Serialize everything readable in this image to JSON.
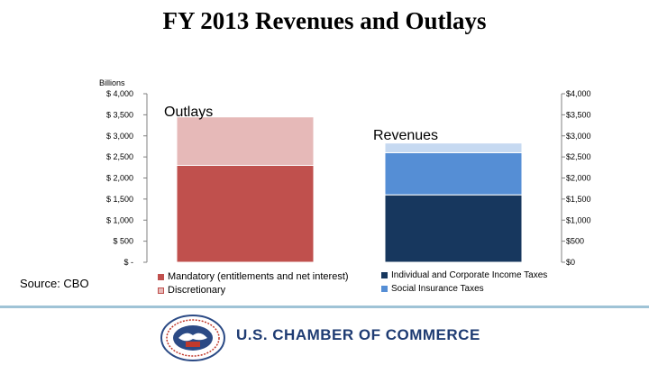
{
  "page": {
    "title": "FY 2013 Revenues and Outlays",
    "source": "Source: CBO",
    "organization": "U.S. CHAMBER OF COMMERCE",
    "seal_text": "U.S. CHAMBER OF COMMERCE",
    "colors": {
      "wordmark": "#1f3c73",
      "rule": "#9fc3d6"
    }
  },
  "chart_data": {
    "type": "bar",
    "stacked": true,
    "unit_label": "Billions",
    "ylim": [
      0,
      4000
    ],
    "grid": false,
    "legend_position": "bottom",
    "left_tick_labels": [
      "$ -",
      "$ 500",
      "$ 1,000",
      "$ 1,500",
      "$ 2,000",
      "$ 2,500",
      "$ 3,000",
      "$ 3,500",
      "$ 4,000"
    ],
    "right_tick_labels": [
      "$0",
      "$500",
      "$1,000",
      "$1,500",
      "$2,000",
      "$2,500",
      "$3,000",
      "$3,500",
      "$4,000"
    ],
    "tick_values": [
      0,
      500,
      1000,
      1500,
      2000,
      2500,
      3000,
      3500,
      4000
    ],
    "bars": [
      {
        "label": "Outlays",
        "segments": [
          {
            "name": "Mandatory (entitlements and net interest)",
            "value": 2300,
            "color": "#c0504d"
          },
          {
            "name": "Discretionary",
            "value": 1150,
            "color": "#e6b9b8"
          }
        ]
      },
      {
        "label": "Revenues",
        "segments": [
          {
            "name": "Individual and Corporate Income Taxes",
            "value": 1600,
            "color": "#17375e"
          },
          {
            "name": "Social Insurance Taxes",
            "value": 1000,
            "color": "#558ed5"
          },
          {
            "name": "",
            "value": 230,
            "color": "#c6d9f1"
          }
        ]
      }
    ],
    "legend": [
      {
        "label": "Mandatory (entitlements and net interest)",
        "color": "#c0504d"
      },
      {
        "label": "Discretionary",
        "color": "#e6b9b8"
      },
      {
        "label": "Individual and Corporate Income Taxes",
        "color": "#17375e"
      },
      {
        "label": "Social Insurance Taxes",
        "color": "#558ed5"
      }
    ]
  }
}
